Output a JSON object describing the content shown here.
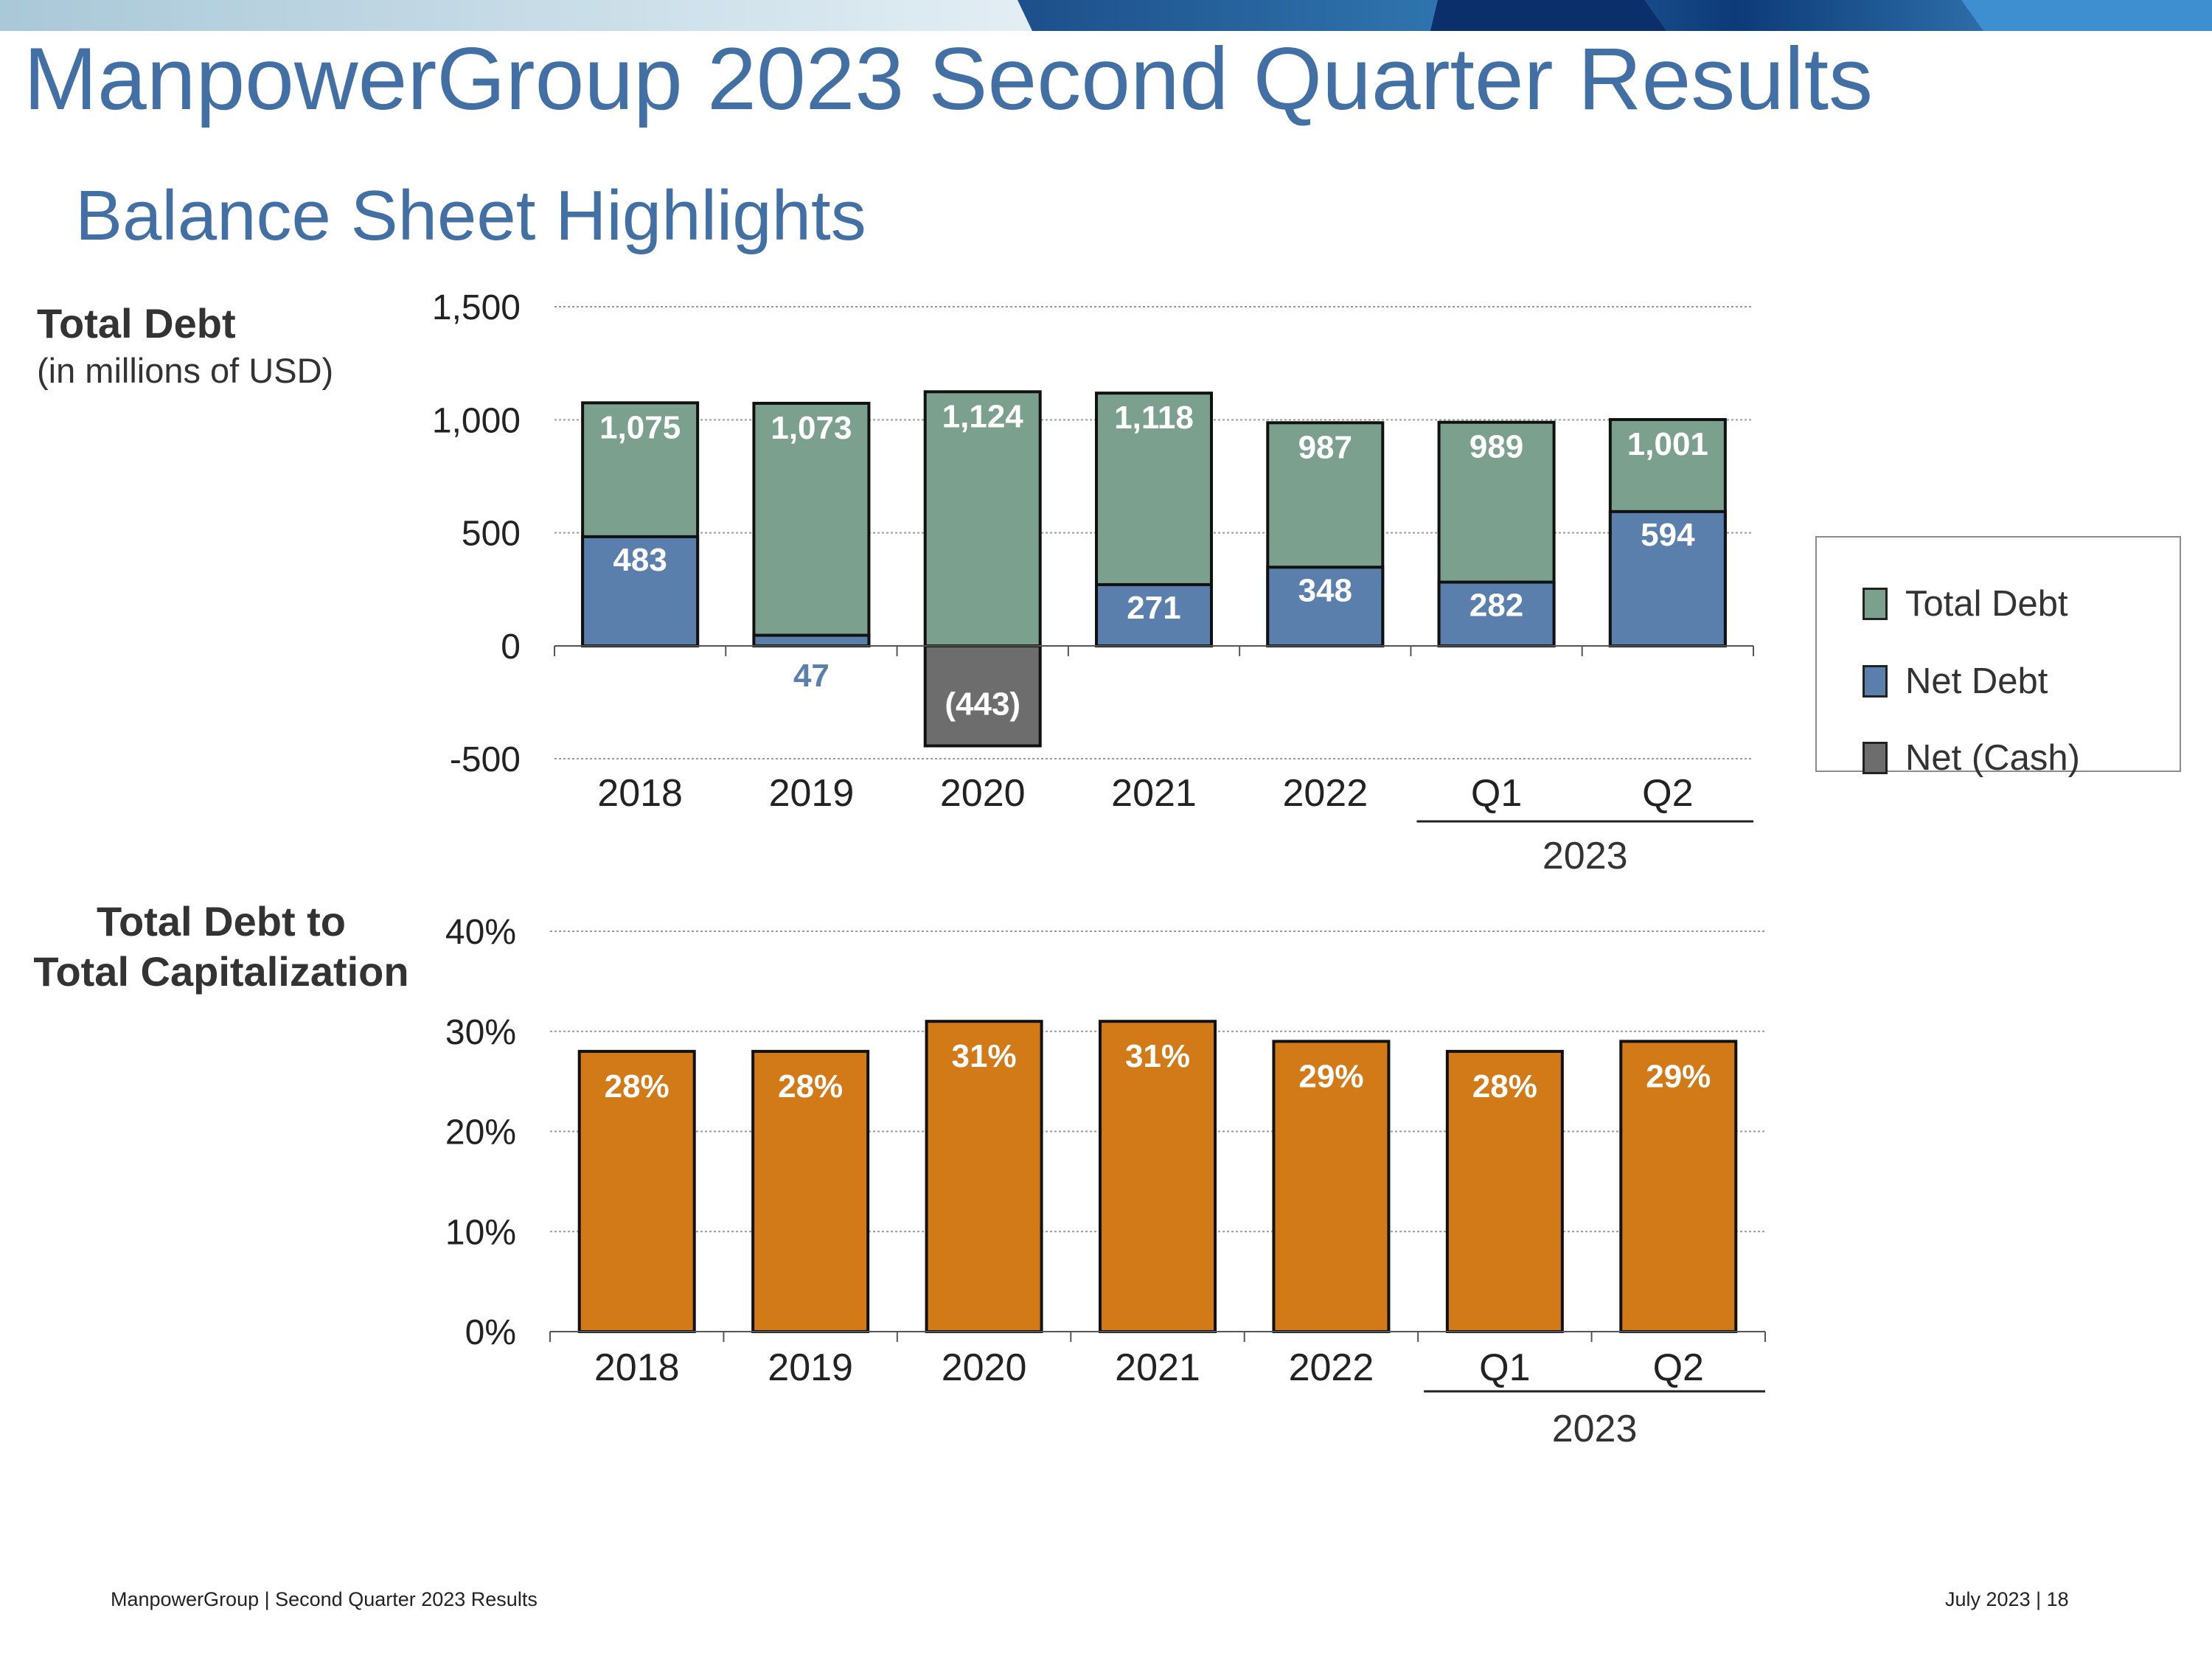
{
  "slide": {
    "title": "ManpowerGroup 2023 Second Quarter Results",
    "subtitle": "Balance Sheet Highlights"
  },
  "labels": {
    "total_debt_title": "Total Debt",
    "total_debt_units": "(in millions of USD)",
    "cap_title_line1": "Total Debt to",
    "cap_title_line2": "Total Capitalization"
  },
  "legend": {
    "items": [
      {
        "label": "Total Debt",
        "color": "#7ba08d"
      },
      {
        "label": "Net Debt",
        "color": "#5b7fad"
      },
      {
        "label": "Net (Cash)",
        "color": "#6d6d6d"
      }
    ]
  },
  "footer": {
    "left": "ManpowerGroup  |  Second Quarter 2023 Results",
    "right": "July 2023   |   18"
  },
  "chart_data": [
    {
      "type": "bar",
      "title": "Total Debt",
      "ylabel": "(in millions of USD)",
      "categories": [
        "2018",
        "2019",
        "2020",
        "2021",
        "2022",
        "Q1",
        "Q2"
      ],
      "group_label": {
        "text": "2023",
        "spans": [
          "Q1",
          "Q2"
        ]
      },
      "ylim": [
        -500,
        1500
      ],
      "yticks": [
        1500,
        1000,
        500,
        0,
        -500
      ],
      "ytick_labels": [
        "1,500",
        "1,000",
        "500",
        "0",
        "-500"
      ],
      "grid": true,
      "series": [
        {
          "name": "Total Debt",
          "color": "#7ba08d",
          "values": [
            1075,
            1073,
            1124,
            1118,
            987,
            989,
            1001
          ],
          "labels": [
            "1,075",
            "1,073",
            "1,124",
            "1,118",
            "987",
            "989",
            "1,001"
          ]
        },
        {
          "name": "Net Debt",
          "color": "#5b7fad",
          "values": [
            483,
            47,
            null,
            271,
            348,
            282,
            594
          ],
          "labels": [
            "483",
            "47",
            null,
            "271",
            "348",
            "282",
            "594"
          ]
        },
        {
          "name": "Net (Cash)",
          "color": "#6d6d6d",
          "values": [
            null,
            null,
            -443,
            null,
            null,
            null,
            null
          ],
          "labels": [
            null,
            null,
            "(443)",
            null,
            null,
            null,
            null
          ]
        }
      ]
    },
    {
      "type": "bar",
      "title": "Total Debt to Total Capitalization",
      "categories": [
        "2018",
        "2019",
        "2020",
        "2021",
        "2022",
        "Q1",
        "Q2"
      ],
      "group_label": {
        "text": "2023",
        "spans": [
          "Q1",
          "Q2"
        ]
      },
      "ylim": [
        0,
        40
      ],
      "yticks": [
        40,
        30,
        20,
        10,
        0
      ],
      "ytick_labels": [
        "40%",
        "30%",
        "20%",
        "10%",
        "0%"
      ],
      "grid": true,
      "series": [
        {
          "name": "Total Debt to Total Capitalization",
          "color": "#d27a17",
          "values": [
            28,
            28,
            31,
            31,
            29,
            28,
            29
          ],
          "labels": [
            "28%",
            "28%",
            "31%",
            "31%",
            "29%",
            "28%",
            "29%"
          ]
        }
      ]
    }
  ]
}
